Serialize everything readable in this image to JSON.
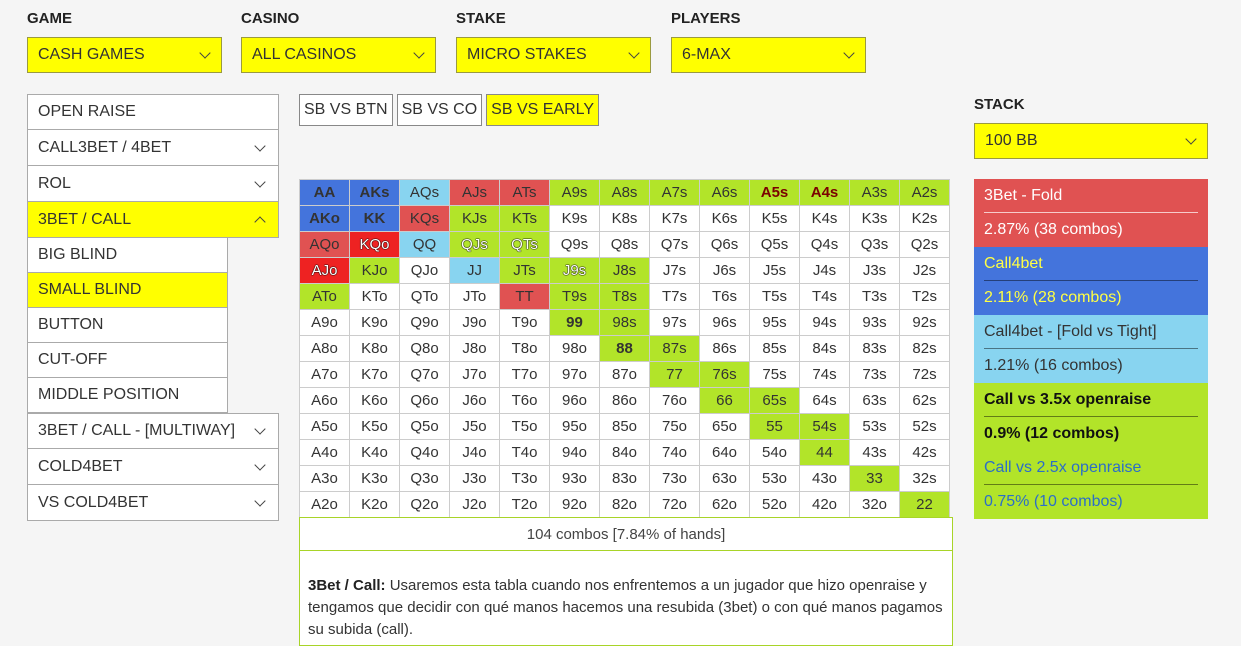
{
  "filters": [
    {
      "label": "GAME",
      "value": "CASH GAMES"
    },
    {
      "label": "CASINO",
      "value": "ALL CASINOS"
    },
    {
      "label": "STAKE",
      "value": "MICRO STAKES"
    },
    {
      "label": "PLAYERS",
      "value": "6-MAX"
    }
  ],
  "menu": {
    "open_raise": "OPEN RAISE",
    "call3bet": "CALL3BET / 4BET",
    "rol": "ROL",
    "bet_call": "3BET / CALL",
    "subs": [
      "BIG BLIND",
      "SMALL BLIND",
      "BUTTON",
      "CUT-OFF",
      "MIDDLE POSITION"
    ],
    "multiway": "3BET / CALL - [MULTIWAY]",
    "cold4bet": "COLD4BET",
    "vs_cold4bet": "VS COLD4BET",
    "active_sub": "SMALL BLIND"
  },
  "tabs": [
    "SB VS BTN",
    "SB VS CO",
    "SB VS EARLY"
  ],
  "active_tab": "SB VS EARLY",
  "colors": {
    "yellow": "#ffff00",
    "green": "#b2e429",
    "red": "#e05252",
    "blue": "#4474dc",
    "lightblue": "#88d4f0",
    "brightred": "#ee2222",
    "white": "#ffffff"
  },
  "matrix": [
    [
      [
        "AA",
        "blue",
        "b"
      ],
      [
        "AKs",
        "blue",
        "b"
      ],
      [
        "AQs",
        "lightblue",
        ""
      ],
      [
        "AJs",
        "red",
        ""
      ],
      [
        "ATs",
        "red",
        ""
      ],
      [
        "A9s",
        "green",
        ""
      ],
      [
        "A8s",
        "green",
        ""
      ],
      [
        "A7s",
        "green",
        ""
      ],
      [
        "A6s",
        "green",
        ""
      ],
      [
        "A5s",
        "green",
        "d"
      ],
      [
        "A4s",
        "green",
        "d"
      ],
      [
        "A3s",
        "green",
        ""
      ],
      [
        "A2s",
        "green",
        ""
      ]
    ],
    [
      [
        "AKo",
        "blue",
        "b"
      ],
      [
        "KK",
        "blue",
        "b"
      ],
      [
        "KQs",
        "red",
        ""
      ],
      [
        "KJs",
        "green",
        ""
      ],
      [
        "KTs",
        "green",
        ""
      ],
      [
        "K9s",
        "white",
        ""
      ],
      [
        "K8s",
        "white",
        ""
      ],
      [
        "K7s",
        "white",
        ""
      ],
      [
        "K6s",
        "white",
        ""
      ],
      [
        "K5s",
        "white",
        ""
      ],
      [
        "K4s",
        "white",
        ""
      ],
      [
        "K3s",
        "white",
        ""
      ],
      [
        "K2s",
        "white",
        ""
      ]
    ],
    [
      [
        "AQo",
        "red",
        ""
      ],
      [
        "KQo",
        "brightred",
        "o"
      ],
      [
        "QQ",
        "lightblue",
        ""
      ],
      [
        "QJs",
        "green",
        "o"
      ],
      [
        "QTs",
        "green",
        "o"
      ],
      [
        "Q9s",
        "white",
        ""
      ],
      [
        "Q8s",
        "white",
        ""
      ],
      [
        "Q7s",
        "white",
        ""
      ],
      [
        "Q6s",
        "white",
        ""
      ],
      [
        "Q5s",
        "white",
        ""
      ],
      [
        "Q4s",
        "white",
        ""
      ],
      [
        "Q3s",
        "white",
        ""
      ],
      [
        "Q2s",
        "white",
        ""
      ]
    ],
    [
      [
        "AJo",
        "brightred",
        "o"
      ],
      [
        "KJo",
        "green",
        ""
      ],
      [
        "QJo",
        "white",
        ""
      ],
      [
        "JJ",
        "lightblue",
        ""
      ],
      [
        "JTs",
        "green",
        ""
      ],
      [
        "J9s",
        "green",
        "o"
      ],
      [
        "J8s",
        "green",
        ""
      ],
      [
        "J7s",
        "white",
        ""
      ],
      [
        "J6s",
        "white",
        ""
      ],
      [
        "J5s",
        "white",
        ""
      ],
      [
        "J4s",
        "white",
        ""
      ],
      [
        "J3s",
        "white",
        ""
      ],
      [
        "J2s",
        "white",
        ""
      ]
    ],
    [
      [
        "ATo",
        "green",
        ""
      ],
      [
        "KTo",
        "white",
        ""
      ],
      [
        "QTo",
        "white",
        ""
      ],
      [
        "JTo",
        "white",
        ""
      ],
      [
        "TT",
        "red",
        ""
      ],
      [
        "T9s",
        "green",
        ""
      ],
      [
        "T8s",
        "green",
        ""
      ],
      [
        "T7s",
        "white",
        ""
      ],
      [
        "T6s",
        "white",
        ""
      ],
      [
        "T5s",
        "white",
        ""
      ],
      [
        "T4s",
        "white",
        ""
      ],
      [
        "T3s",
        "white",
        ""
      ],
      [
        "T2s",
        "white",
        ""
      ]
    ],
    [
      [
        "A9o",
        "white",
        ""
      ],
      [
        "K9o",
        "white",
        ""
      ],
      [
        "Q9o",
        "white",
        ""
      ],
      [
        "J9o",
        "white",
        ""
      ],
      [
        "T9o",
        "white",
        ""
      ],
      [
        "99",
        "green",
        "b"
      ],
      [
        "98s",
        "green",
        ""
      ],
      [
        "97s",
        "white",
        ""
      ],
      [
        "96s",
        "white",
        ""
      ],
      [
        "95s",
        "white",
        ""
      ],
      [
        "94s",
        "white",
        ""
      ],
      [
        "93s",
        "white",
        ""
      ],
      [
        "92s",
        "white",
        ""
      ]
    ],
    [
      [
        "A8o",
        "white",
        ""
      ],
      [
        "K8o",
        "white",
        ""
      ],
      [
        "Q8o",
        "white",
        ""
      ],
      [
        "J8o",
        "white",
        ""
      ],
      [
        "T8o",
        "white",
        ""
      ],
      [
        "98o",
        "white",
        ""
      ],
      [
        "88",
        "green",
        "b"
      ],
      [
        "87s",
        "green",
        ""
      ],
      [
        "86s",
        "white",
        ""
      ],
      [
        "85s",
        "white",
        ""
      ],
      [
        "84s",
        "white",
        ""
      ],
      [
        "83s",
        "white",
        ""
      ],
      [
        "82s",
        "white",
        ""
      ]
    ],
    [
      [
        "A7o",
        "white",
        ""
      ],
      [
        "K7o",
        "white",
        ""
      ],
      [
        "Q7o",
        "white",
        ""
      ],
      [
        "J7o",
        "white",
        ""
      ],
      [
        "T7o",
        "white",
        ""
      ],
      [
        "97o",
        "white",
        ""
      ],
      [
        "87o",
        "white",
        ""
      ],
      [
        "77",
        "green",
        ""
      ],
      [
        "76s",
        "green",
        ""
      ],
      [
        "75s",
        "white",
        ""
      ],
      [
        "74s",
        "white",
        ""
      ],
      [
        "73s",
        "white",
        ""
      ],
      [
        "72s",
        "white",
        ""
      ]
    ],
    [
      [
        "A6o",
        "white",
        ""
      ],
      [
        "K6o",
        "white",
        ""
      ],
      [
        "Q6o",
        "white",
        ""
      ],
      [
        "J6o",
        "white",
        ""
      ],
      [
        "T6o",
        "white",
        ""
      ],
      [
        "96o",
        "white",
        ""
      ],
      [
        "86o",
        "white",
        ""
      ],
      [
        "76o",
        "white",
        ""
      ],
      [
        "66",
        "green",
        ""
      ],
      [
        "65s",
        "green",
        ""
      ],
      [
        "64s",
        "white",
        ""
      ],
      [
        "63s",
        "white",
        ""
      ],
      [
        "62s",
        "white",
        ""
      ]
    ],
    [
      [
        "A5o",
        "white",
        ""
      ],
      [
        "K5o",
        "white",
        ""
      ],
      [
        "Q5o",
        "white",
        ""
      ],
      [
        "J5o",
        "white",
        ""
      ],
      [
        "T5o",
        "white",
        ""
      ],
      [
        "95o",
        "white",
        ""
      ],
      [
        "85o",
        "white",
        ""
      ],
      [
        "75o",
        "white",
        ""
      ],
      [
        "65o",
        "white",
        ""
      ],
      [
        "55",
        "green",
        ""
      ],
      [
        "54s",
        "green",
        ""
      ],
      [
        "53s",
        "white",
        ""
      ],
      [
        "52s",
        "white",
        ""
      ]
    ],
    [
      [
        "A4o",
        "white",
        ""
      ],
      [
        "K4o",
        "white",
        ""
      ],
      [
        "Q4o",
        "white",
        ""
      ],
      [
        "J4o",
        "white",
        ""
      ],
      [
        "T4o",
        "white",
        ""
      ],
      [
        "94o",
        "white",
        ""
      ],
      [
        "84o",
        "white",
        ""
      ],
      [
        "74o",
        "white",
        ""
      ],
      [
        "64o",
        "white",
        ""
      ],
      [
        "54o",
        "white",
        ""
      ],
      [
        "44",
        "green",
        ""
      ],
      [
        "43s",
        "white",
        ""
      ],
      [
        "42s",
        "white",
        ""
      ]
    ],
    [
      [
        "A3o",
        "white",
        ""
      ],
      [
        "K3o",
        "white",
        ""
      ],
      [
        "Q3o",
        "white",
        ""
      ],
      [
        "J3o",
        "white",
        ""
      ],
      [
        "T3o",
        "white",
        ""
      ],
      [
        "93o",
        "white",
        ""
      ],
      [
        "83o",
        "white",
        ""
      ],
      [
        "73o",
        "white",
        ""
      ],
      [
        "63o",
        "white",
        ""
      ],
      [
        "53o",
        "white",
        ""
      ],
      [
        "43o",
        "white",
        ""
      ],
      [
        "33",
        "green",
        ""
      ],
      [
        "32s",
        "white",
        ""
      ]
    ],
    [
      [
        "A2o",
        "white",
        ""
      ],
      [
        "K2o",
        "white",
        ""
      ],
      [
        "Q2o",
        "white",
        ""
      ],
      [
        "J2o",
        "white",
        ""
      ],
      [
        "T2o",
        "white",
        ""
      ],
      [
        "92o",
        "white",
        ""
      ],
      [
        "82o",
        "white",
        ""
      ],
      [
        "72o",
        "white",
        ""
      ],
      [
        "62o",
        "white",
        ""
      ],
      [
        "52o",
        "white",
        ""
      ],
      [
        "42o",
        "white",
        ""
      ],
      [
        "32o",
        "white",
        ""
      ],
      [
        "22",
        "green",
        ""
      ]
    ]
  ],
  "summary": "104 combos [7.84% of hands]",
  "description": {
    "title": "3Bet / Call:",
    "text": " Usaremos esta tabla cuando nos enfrentemos a un jugador que hizo openraise y tengamos que decidir con qué manos hacemos una resubida (3bet) o con qué manos pagamos su subida (call)."
  },
  "stack": {
    "label": "STACK",
    "value": "100 BB"
  },
  "legend": [
    {
      "name": "3Bet - Fold",
      "stat": "2.87%  (38 combos)",
      "color": "#e05252",
      "text_color": "#ffffff",
      "style": ""
    },
    {
      "name": "Call4bet",
      "stat": "2.11%  (28 combos)",
      "color": "#4474dc",
      "text_color": "#ffff44",
      "style": ""
    },
    {
      "name": "Call4bet - [Fold vs Tight]",
      "stat": "1.21%  (16 combos)",
      "color": "#88d4f0",
      "text_color": "#333333",
      "style": ""
    },
    {
      "name": "Call vs 3.5x openraise",
      "stat": "0.9%  (12 combos)",
      "color": "#b2e429",
      "text_color": "#111111",
      "style": "bold"
    },
    {
      "name": "Call vs 2.5x openraise",
      "stat": "0.75%  (10 combos)",
      "color": "#b2e429",
      "text_color": "#2b6ec8",
      "style": ""
    }
  ]
}
